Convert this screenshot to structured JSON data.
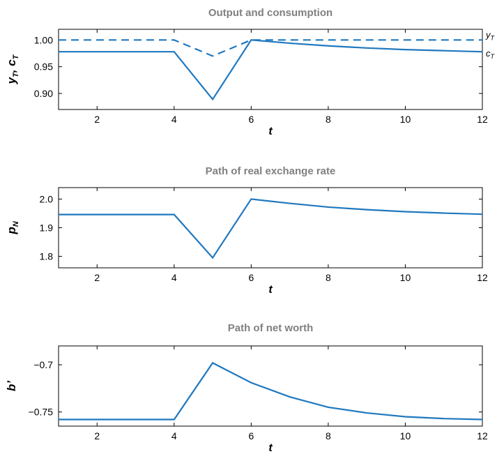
{
  "chart_data": [
    {
      "type": "line",
      "title": "Output and consumption",
      "xlabel": "t",
      "ylabel": {
        "parts": [
          [
            "y",
            "T"
          ],
          [
            ", ",
            ""
          ],
          [
            "c",
            "T"
          ]
        ]
      },
      "xlim": [
        1,
        12
      ],
      "ylim": [
        0.87,
        1.02
      ],
      "xticks": [
        "2",
        "4",
        "6",
        "8",
        "10",
        "12"
      ],
      "yticks": [
        "0.90",
        "0.95",
        "1.00"
      ],
      "series": [
        {
          "name": "y_T",
          "style": "dashed",
          "x": [
            1,
            2,
            3,
            4,
            5,
            6,
            7,
            8,
            9,
            10,
            11,
            12
          ],
          "values": [
            1.0,
            1.0,
            1.0,
            1.0,
            0.97,
            1.0,
            1.0,
            1.0,
            1.0,
            1.0,
            1.0,
            1.0
          ]
        },
        {
          "name": "c_T",
          "style": "solid",
          "x": [
            1,
            2,
            3,
            4,
            5,
            6,
            7,
            8,
            9,
            10,
            11,
            12
          ],
          "values": [
            0.978,
            0.978,
            0.978,
            0.978,
            0.889,
            1.0,
            0.994,
            0.989,
            0.985,
            0.982,
            0.98,
            0.978
          ]
        }
      ],
      "legend_labels": [
        {
          "base": "y",
          "sub": "T"
        },
        {
          "base": "c",
          "sub": "T"
        }
      ],
      "legend": "right"
    },
    {
      "type": "line",
      "title": "Path of real exchange rate",
      "xlabel": "t",
      "ylabel": {
        "parts": [
          [
            "p",
            "N"
          ]
        ]
      },
      "xlim": [
        1,
        12
      ],
      "ylim": [
        1.76,
        2.04
      ],
      "xticks": [
        "2",
        "4",
        "6",
        "8",
        "10",
        "12"
      ],
      "yticks": [
        "1.8",
        "1.9",
        "2.0"
      ],
      "series": [
        {
          "style": "solid",
          "x": [
            1,
            2,
            3,
            4,
            5,
            6,
            7,
            8,
            9,
            10,
            11,
            12
          ],
          "values": [
            1.946,
            1.946,
            1.946,
            1.946,
            1.795,
            2.0,
            1.985,
            1.972,
            1.963,
            1.956,
            1.951,
            1.947
          ]
        }
      ],
      "legend": "none"
    },
    {
      "type": "line",
      "title": "Path of net worth",
      "xlabel": "t",
      "ylabel": {
        "parts": [
          [
            "b’",
            ""
          ]
        ]
      },
      "xlim": [
        1,
        12
      ],
      "ylim": [
        -0.765,
        -0.68
      ],
      "xticks": [
        "2",
        "4",
        "6",
        "8",
        "10",
        "12"
      ],
      "yticks": [
        "−0.75",
        "−0.7"
      ],
      "series": [
        {
          "style": "solid",
          "x": [
            1,
            2,
            3,
            4,
            5,
            6,
            7,
            8,
            9,
            10,
            11,
            12
          ],
          "values": [
            -0.758,
            -0.758,
            -0.758,
            -0.758,
            -0.698,
            -0.719,
            -0.734,
            -0.745,
            -0.751,
            -0.755,
            -0.757,
            -0.758
          ]
        }
      ],
      "legend": "none"
    }
  ],
  "colors": {
    "line": "#1f78bf",
    "title": "#808080",
    "axis": "#000000"
  }
}
